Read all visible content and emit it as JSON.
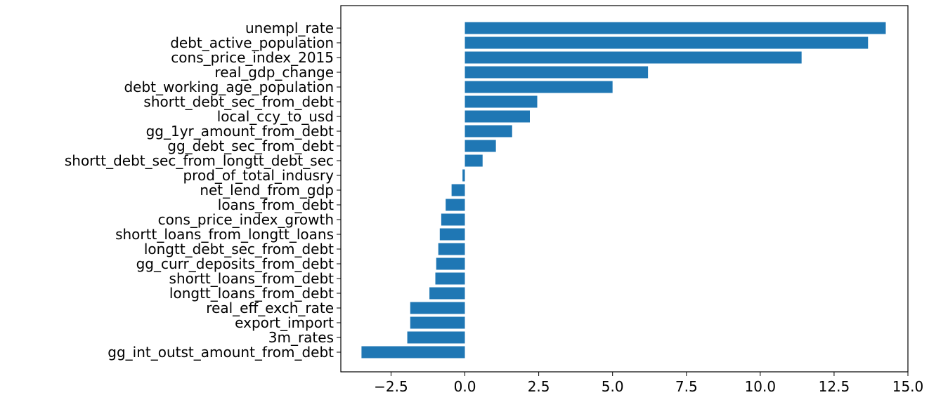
{
  "chart_data": {
    "type": "bar",
    "orientation": "horizontal",
    "title": "",
    "xlabel": "",
    "ylabel": "",
    "xlim": [
      -4.2,
      15.0
    ],
    "xticks": [
      -2.5,
      0.0,
      2.5,
      5.0,
      7.5,
      10.0,
      12.5,
      15.0
    ],
    "xtick_labels": [
      "−2.5",
      "0.0",
      "2.5",
      "5.0",
      "7.5",
      "10.0",
      "12.5",
      "15.0"
    ],
    "grid": false,
    "bar_color": "#1f77b4",
    "categories": [
      "unempl_rate",
      "debt_active_population",
      "cons_price_index_2015",
      "real_gdp_change",
      "debt_working_age_population",
      "shortt_debt_sec_from_debt",
      "local_ccy_to_usd",
      "gg_1yr_amount_from_debt",
      "gg_debt_sec_from_debt",
      "shortt_debt_sec_from_longtt_debt_sec",
      "prod_of_total_indusry",
      "net_lend_from_gdp",
      "loans_from_debt",
      "cons_price_index_growth",
      "shortt_loans_from_longtt_loans",
      "longtt_debt_sec_from_debt",
      "gg_curr_deposits_from_debt",
      "shortt_loans_from_debt",
      "longtt_loans_from_debt",
      "real_eff_exch_rate",
      "export_import",
      "3m_rates",
      "gg_int_outst_amount_from_debt"
    ],
    "values": [
      14.25,
      13.65,
      11.4,
      6.2,
      5.0,
      2.45,
      2.2,
      1.6,
      1.05,
      0.6,
      -0.08,
      -0.45,
      -0.65,
      -0.8,
      -0.85,
      -0.9,
      -0.97,
      -1.0,
      -1.2,
      -1.85,
      -1.85,
      -1.95,
      -3.5
    ]
  }
}
